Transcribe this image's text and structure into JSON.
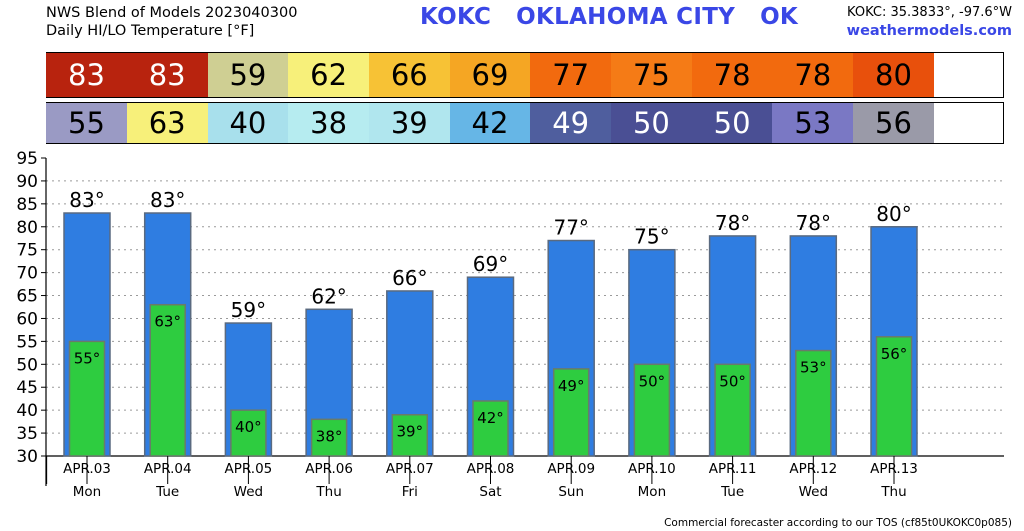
{
  "header": {
    "title_line1": "NWS Blend of Models 2023040300",
    "title_line2": "Daily HI/LO Temperature [°F]",
    "station": "KOKC   OKLAHOMA CITY   OK",
    "coords": "KOKC: 35.3833°, -97.6°W",
    "site": "weathermodels.com"
  },
  "strips": {
    "hi": [
      {
        "value": "83",
        "bg": "#b8230e",
        "fg": "#ffffff"
      },
      {
        "value": "83",
        "bg": "#b8230e",
        "fg": "#ffffff"
      },
      {
        "value": "59",
        "bg": "#cfcf93",
        "fg": "#000000"
      },
      {
        "value": "62",
        "bg": "#f7f07a",
        "fg": "#000000"
      },
      {
        "value": "66",
        "bg": "#f7c235",
        "fg": "#000000"
      },
      {
        "value": "69",
        "bg": "#f5a623",
        "fg": "#000000"
      },
      {
        "value": "77",
        "bg": "#f26a0e",
        "fg": "#000000"
      },
      {
        "value": "75",
        "bg": "#f57b16",
        "fg": "#000000"
      },
      {
        "value": "78",
        "bg": "#f26a0e",
        "fg": "#000000"
      },
      {
        "value": "78",
        "bg": "#f26a0e",
        "fg": "#000000"
      },
      {
        "value": "80",
        "bg": "#e8500c",
        "fg": "#000000"
      }
    ],
    "lo": [
      {
        "value": "55",
        "bg": "#9a9ac4",
        "fg": "#000000"
      },
      {
        "value": "63",
        "bg": "#f7f07a",
        "fg": "#000000"
      },
      {
        "value": "40",
        "bg": "#a8e0ec",
        "fg": "#000000"
      },
      {
        "value": "38",
        "bg": "#b6ecf0",
        "fg": "#000000"
      },
      {
        "value": "39",
        "bg": "#b0e6ee",
        "fg": "#000000"
      },
      {
        "value": "42",
        "bg": "#66b6e6",
        "fg": "#000000"
      },
      {
        "value": "49",
        "bg": "#4f5e9e",
        "fg": "#ffffff"
      },
      {
        "value": "50",
        "bg": "#4a4f94",
        "fg": "#ffffff"
      },
      {
        "value": "50",
        "bg": "#4a4f94",
        "fg": "#ffffff"
      },
      {
        "value": "53",
        "bg": "#7a78c4",
        "fg": "#000000"
      },
      {
        "value": "56",
        "bg": "#9a9aa8",
        "fg": "#000000"
      }
    ]
  },
  "chart_data": {
    "type": "bar",
    "categories": [
      "APR.03",
      "APR.04",
      "APR.05",
      "APR.06",
      "APR.07",
      "APR.08",
      "APR.09",
      "APR.10",
      "APR.11",
      "APR.12",
      "APR.13"
    ],
    "weekdays": [
      "Mon",
      "Tue",
      "Wed",
      "Thu",
      "Fri",
      "Sat",
      "Sun",
      "Mon",
      "Tue",
      "Wed",
      "Thu"
    ],
    "series": [
      {
        "values": [
          83,
          83,
          59,
          62,
          66,
          69,
          77,
          75,
          78,
          78,
          80
        ],
        "color": "#2f7de1",
        "labels": [
          "83°",
          "83°",
          "59°",
          "62°",
          "66°",
          "69°",
          "77°",
          "75°",
          "78°",
          "78°",
          "80°"
        ]
      },
      {
        "values": [
          55,
          63,
          40,
          38,
          39,
          42,
          49,
          50,
          50,
          53,
          56
        ],
        "color": "#2ecc40",
        "labels": [
          "55°",
          "63°",
          "40°",
          "38°",
          "39°",
          "42°",
          "49°",
          "50°",
          "50°",
          "53°",
          "56°"
        ]
      }
    ],
    "ylim": [
      30,
      95
    ],
    "yticks": [
      "30",
      "35",
      "40",
      "45",
      "50",
      "55",
      "60",
      "65",
      "70",
      "75",
      "80",
      "85",
      "90",
      "95"
    ],
    "grid": true
  },
  "footer": "Commercial forecaster according to our TOS (cf85t0UKOKC0p085)"
}
